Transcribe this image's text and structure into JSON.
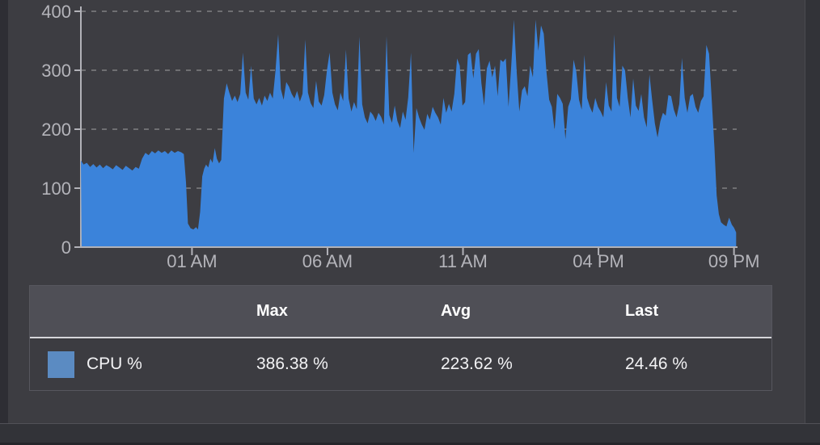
{
  "colors": {
    "panel_bg": "#3d3d42",
    "chart_fill": "#3b83da",
    "legend_swatch": "#5b8bc2",
    "axis_line": "#b2b2b8",
    "axis_label": "#b4b4ba",
    "gridline": "rgba(255,255,255,0.26)",
    "table_header_bg": "#4f4f56"
  },
  "chart_data": {
    "type": "area",
    "title": "",
    "xlabel": "",
    "ylabel": "",
    "x_unit": "hours since start of 24h window (window ends just after 09 PM)",
    "xlim": [
      0,
      24.2
    ],
    "ylim": [
      0,
      400
    ],
    "grid": "horizontal dashed gridlines at 100/200/300/400",
    "legend_position": "table below chart",
    "y_ticks": [
      {
        "value": 0,
        "label": "0"
      },
      {
        "value": 100,
        "label": "100"
      },
      {
        "value": 200,
        "label": "200"
      },
      {
        "value": 300,
        "label": "300"
      },
      {
        "value": 400,
        "label": "400"
      }
    ],
    "x_ticks": [
      {
        "hour": 4.1,
        "label": "01 AM"
      },
      {
        "hour": 9.1,
        "label": "06 AM"
      },
      {
        "hour": 14.1,
        "label": "11 AM"
      },
      {
        "hour": 19.1,
        "label": "04 PM"
      },
      {
        "hour": 24.1,
        "label": "09 PM"
      }
    ],
    "series": [
      {
        "name": "CPU %",
        "color": "#3b83da",
        "max": 386.38,
        "avg": 223.62,
        "last": 24.46,
        "points": [
          [
            0.0,
            147
          ],
          [
            0.1,
            140
          ],
          [
            0.22,
            143
          ],
          [
            0.34,
            136
          ],
          [
            0.46,
            141
          ],
          [
            0.58,
            135
          ],
          [
            0.7,
            140
          ],
          [
            0.82,
            134
          ],
          [
            0.94,
            139
          ],
          [
            1.06,
            136
          ],
          [
            1.18,
            132
          ],
          [
            1.3,
            139
          ],
          [
            1.42,
            135
          ],
          [
            1.54,
            131
          ],
          [
            1.66,
            138
          ],
          [
            1.78,
            134
          ],
          [
            1.9,
            130
          ],
          [
            2.02,
            136
          ],
          [
            2.14,
            133
          ],
          [
            2.26,
            150
          ],
          [
            2.38,
            160
          ],
          [
            2.5,
            156
          ],
          [
            2.62,
            163
          ],
          [
            2.74,
            159
          ],
          [
            2.86,
            164
          ],
          [
            2.98,
            160
          ],
          [
            3.1,
            163
          ],
          [
            3.22,
            158
          ],
          [
            3.34,
            164
          ],
          [
            3.46,
            160
          ],
          [
            3.58,
            163
          ],
          [
            3.7,
            161
          ],
          [
            3.8,
            158
          ],
          [
            3.88,
            110
          ],
          [
            3.95,
            40
          ],
          [
            4.05,
            32
          ],
          [
            4.15,
            30
          ],
          [
            4.25,
            34
          ],
          [
            4.32,
            30
          ],
          [
            4.4,
            60
          ],
          [
            4.48,
            120
          ],
          [
            4.55,
            133
          ],
          [
            4.62,
            140
          ],
          [
            4.7,
            135
          ],
          [
            4.78,
            150
          ],
          [
            4.86,
            143
          ],
          [
            4.94,
            168
          ],
          [
            5.02,
            150
          ],
          [
            5.1,
            142
          ],
          [
            5.18,
            148
          ],
          [
            5.28,
            252
          ],
          [
            5.38,
            278
          ],
          [
            5.48,
            262
          ],
          [
            5.58,
            248
          ],
          [
            5.68,
            257
          ],
          [
            5.78,
            246
          ],
          [
            5.88,
            260
          ],
          [
            5.98,
            330
          ],
          [
            6.08,
            262
          ],
          [
            6.18,
            250
          ],
          [
            6.28,
            308
          ],
          [
            6.38,
            252
          ],
          [
            6.48,
            242
          ],
          [
            6.58,
            253
          ],
          [
            6.68,
            240
          ],
          [
            6.78,
            257
          ],
          [
            6.88,
            248
          ],
          [
            6.98,
            262
          ],
          [
            7.08,
            252
          ],
          [
            7.18,
            298
          ],
          [
            7.28,
            361
          ],
          [
            7.38,
            268
          ],
          [
            7.48,
            250
          ],
          [
            7.58,
            280
          ],
          [
            7.68,
            272
          ],
          [
            7.78,
            260
          ],
          [
            7.88,
            252
          ],
          [
            7.98,
            265
          ],
          [
            8.08,
            247
          ],
          [
            8.18,
            260
          ],
          [
            8.28,
            352
          ],
          [
            8.38,
            262
          ],
          [
            8.48,
            244
          ],
          [
            8.58,
            236
          ],
          [
            8.68,
            282
          ],
          [
            8.78,
            247
          ],
          [
            8.88,
            240
          ],
          [
            8.98,
            258
          ],
          [
            9.08,
            300
          ],
          [
            9.18,
            330
          ],
          [
            9.28,
            262
          ],
          [
            9.38,
            242
          ],
          [
            9.48,
            232
          ],
          [
            9.58,
            262
          ],
          [
            9.68,
            248
          ],
          [
            9.78,
            335
          ],
          [
            9.88,
            252
          ],
          [
            9.98,
            230
          ],
          [
            10.08,
            246
          ],
          [
            10.18,
            234
          ],
          [
            10.28,
            357
          ],
          [
            10.38,
            242
          ],
          [
            10.48,
            220
          ],
          [
            10.58,
            210
          ],
          [
            10.68,
            230
          ],
          [
            10.78,
            224
          ],
          [
            10.88,
            214
          ],
          [
            10.98,
            228
          ],
          [
            11.08,
            221
          ],
          [
            11.18,
            208
          ],
          [
            11.28,
            358
          ],
          [
            11.38,
            224
          ],
          [
            11.48,
            211
          ],
          [
            11.58,
            240
          ],
          [
            11.68,
            214
          ],
          [
            11.78,
            202
          ],
          [
            11.88,
            230
          ],
          [
            11.98,
            216
          ],
          [
            12.08,
            254
          ],
          [
            12.18,
            330
          ],
          [
            12.28,
            160
          ],
          [
            12.38,
            236
          ],
          [
            12.48,
            220
          ],
          [
            12.58,
            208
          ],
          [
            12.68,
            199
          ],
          [
            12.78,
            226
          ],
          [
            12.88,
            216
          ],
          [
            12.98,
            238
          ],
          [
            13.08,
            228
          ],
          [
            13.18,
            220
          ],
          [
            13.28,
            208
          ],
          [
            13.38,
            253
          ],
          [
            13.48,
            228
          ],
          [
            13.58,
            243
          ],
          [
            13.68,
            230
          ],
          [
            13.78,
            260
          ],
          [
            13.88,
            320
          ],
          [
            13.98,
            308
          ],
          [
            14.08,
            240
          ],
          [
            14.18,
            246
          ],
          [
            14.28,
            326
          ],
          [
            14.38,
            330
          ],
          [
            14.48,
            286
          ],
          [
            14.58,
            328
          ],
          [
            14.68,
            336
          ],
          [
            14.78,
            278
          ],
          [
            14.88,
            240
          ],
          [
            14.98,
            303
          ],
          [
            15.08,
            316
          ],
          [
            15.18,
            288
          ],
          [
            15.28,
            308
          ],
          [
            15.38,
            256
          ],
          [
            15.48,
            318
          ],
          [
            15.58,
            314
          ],
          [
            15.68,
            320
          ],
          [
            15.78,
            238
          ],
          [
            15.88,
            308
          ],
          [
            15.98,
            386
          ],
          [
            16.08,
            298
          ],
          [
            16.18,
            230
          ],
          [
            16.28,
            266
          ],
          [
            16.38,
            273
          ],
          [
            16.48,
            256
          ],
          [
            16.58,
            308
          ],
          [
            16.68,
            288
          ],
          [
            16.78,
            386
          ],
          [
            16.88,
            333
          ],
          [
            16.98,
            376
          ],
          [
            17.08,
            362
          ],
          [
            17.18,
            298
          ],
          [
            17.28,
            250
          ],
          [
            17.38,
            238
          ],
          [
            17.48,
            198
          ],
          [
            17.58,
            260
          ],
          [
            17.68,
            253
          ],
          [
            17.78,
            243
          ],
          [
            17.88,
            183
          ],
          [
            17.98,
            238
          ],
          [
            18.08,
            251
          ],
          [
            18.18,
            318
          ],
          [
            18.28,
            298
          ],
          [
            18.38,
            250
          ],
          [
            18.48,
            233
          ],
          [
            18.58,
            326
          ],
          [
            18.68,
            253
          ],
          [
            18.78,
            238
          ],
          [
            18.88,
            228
          ],
          [
            18.98,
            253
          ],
          [
            19.08,
            238
          ],
          [
            19.18,
            230
          ],
          [
            19.28,
            220
          ],
          [
            19.38,
            280
          ],
          [
            19.48,
            240
          ],
          [
            19.58,
            230
          ],
          [
            19.68,
            361
          ],
          [
            19.78,
            253
          ],
          [
            19.88,
            238
          ],
          [
            19.98,
            308
          ],
          [
            20.08,
            300
          ],
          [
            20.18,
            253
          ],
          [
            20.28,
            220
          ],
          [
            20.38,
            286
          ],
          [
            20.48,
            240
          ],
          [
            20.58,
            231
          ],
          [
            20.68,
            260
          ],
          [
            20.78,
            220
          ],
          [
            20.88,
            203
          ],
          [
            20.98,
            293
          ],
          [
            21.08,
            250
          ],
          [
            21.18,
            210
          ],
          [
            21.28,
            186
          ],
          [
            21.38,
            213
          ],
          [
            21.48,
            228
          ],
          [
            21.58,
            223
          ],
          [
            21.68,
            258
          ],
          [
            21.78,
            256
          ],
          [
            21.88,
            233
          ],
          [
            21.98,
            220
          ],
          [
            22.08,
            243
          ],
          [
            22.18,
            321
          ],
          [
            22.28,
            253
          ],
          [
            22.38,
            228
          ],
          [
            22.48,
            256
          ],
          [
            22.58,
            260
          ],
          [
            22.68,
            238
          ],
          [
            22.78,
            228
          ],
          [
            22.88,
            248
          ],
          [
            22.98,
            256
          ],
          [
            23.08,
            343
          ],
          [
            23.18,
            328
          ],
          [
            23.28,
            248
          ],
          [
            23.38,
            168
          ],
          [
            23.46,
            88
          ],
          [
            23.54,
            56
          ],
          [
            23.62,
            42
          ],
          [
            23.72,
            38
          ],
          [
            23.82,
            35
          ],
          [
            23.92,
            50
          ],
          [
            24.02,
            38
          ],
          [
            24.1,
            33
          ],
          [
            24.18,
            25
          ]
        ]
      }
    ]
  },
  "table": {
    "headers": [
      "",
      "Max",
      "Avg",
      "Last"
    ],
    "rows": [
      {
        "label": "CPU %",
        "max": "386.38 %",
        "avg": "223.62 %",
        "last": "24.46 %"
      }
    ]
  }
}
